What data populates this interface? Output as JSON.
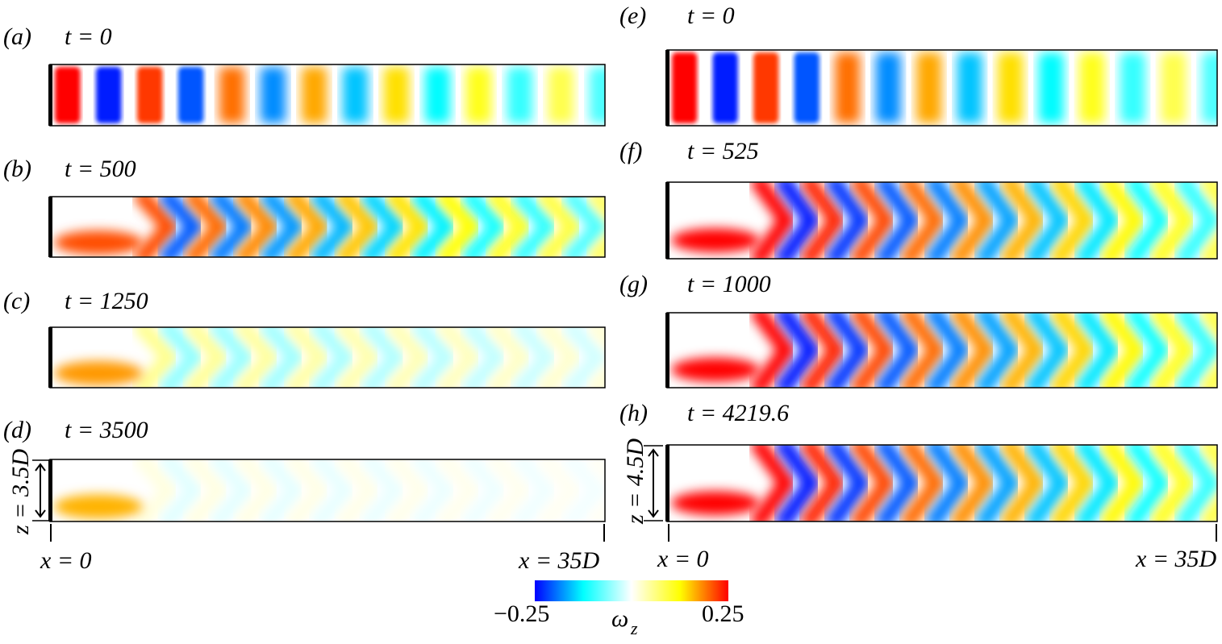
{
  "panels": [
    {
      "label": "(a)",
      "time": "t = 0"
    },
    {
      "label": "(b)",
      "time": "t = 500"
    },
    {
      "label": "(c)",
      "time": "t = 1250"
    },
    {
      "label": "(d)",
      "time": "t = 3500"
    },
    {
      "label": "(e)",
      "time": "t = 0"
    },
    {
      "label": "(f)",
      "time": "t = 525"
    },
    {
      "label": "(g)",
      "time": "t = 1000"
    },
    {
      "label": "(h)",
      "time": "t = 4219.6"
    }
  ],
  "left_axis": {
    "x_start": "x = 0",
    "x_end": "x = 35D",
    "z_extent": "z = 3.5D"
  },
  "right_axis": {
    "x_start": "x = 0",
    "x_end": "x = 35D",
    "z_extent": "z = 4.5D"
  },
  "colorbar": {
    "min": "−0.25",
    "max": "0.25",
    "symbol": "ω",
    "subscript": "z"
  }
}
